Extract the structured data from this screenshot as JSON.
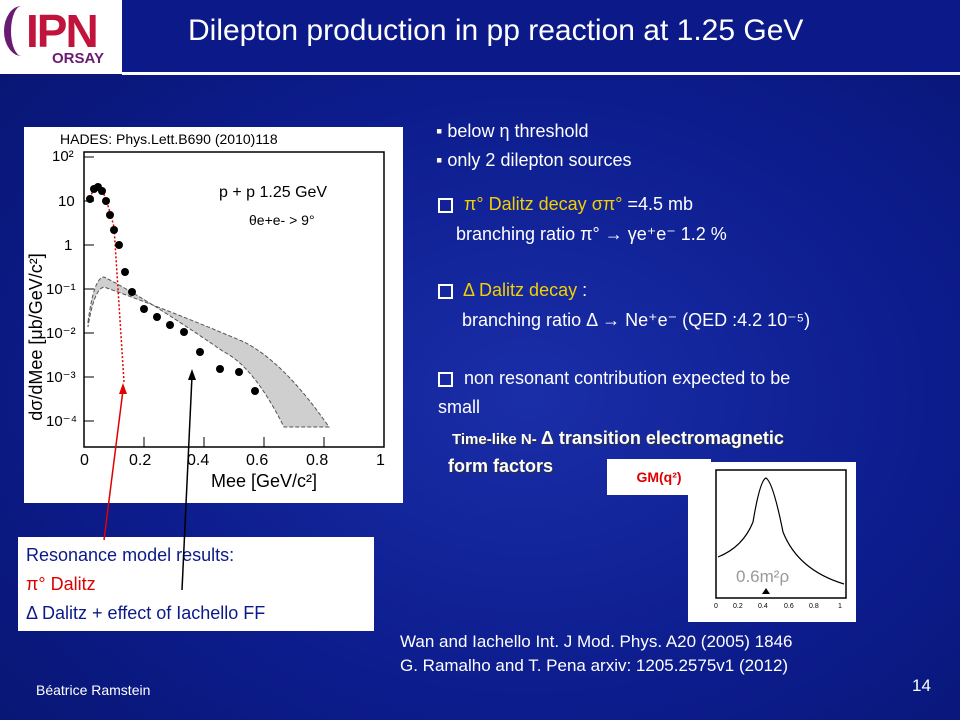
{
  "header": {
    "logo_text": "IPN",
    "logo_sub": "ORSAY",
    "title": "Dilepton production in pp reaction at 1.25 GeV"
  },
  "plot": {
    "caption": "HADES: Phys.Lett.B690 (2010)118",
    "reaction": "p + p  1.25 GeV",
    "angle_cut": "θe+e- > 9°",
    "ylabel": "dσ/dMee  [μb/GeV/c²]",
    "xlabel": "Mee [GeV/c²]",
    "yticks": [
      "10²",
      "10",
      "1",
      "10⁻¹",
      "10⁻²",
      "10⁻³",
      "10⁻⁴"
    ],
    "xticks": [
      "0",
      "0.2",
      "0.4",
      "0.6",
      "0.8",
      "1"
    ]
  },
  "bullets": {
    "b1": "below η threshold",
    "b2": "only 2 dilepton sources"
  },
  "items": {
    "pi0_title": "π° Dalitz decay",
    "pi0_sigma": "σπ°",
    "pi0_value": " =4.5 mb",
    "pi0_br": "branching ratio π° → γe⁺e⁻ 1.2 %",
    "delta_title": "Δ Dalitz decay",
    "delta_colon": " :",
    "delta_br": "branching ratio Δ → Ne⁺e⁻ (QED :4.2 10⁻⁵)",
    "nonres_1": "non resonant contribution expected to be",
    "nonres_2": "small"
  },
  "timelike": {
    "line1_small": "Time-like N- ",
    "line1_big": "Δ transition electromagnetic",
    "line2": "form factors"
  },
  "gm": {
    "label": "GM(q²)",
    "annotation": "0.6m²ρ"
  },
  "resonance": {
    "line1": "Resonance model results:",
    "line2": "π° Dalitz",
    "line3": "Δ Dalitz + effect of Iachello FF"
  },
  "refs": {
    "ref1": "Wan and Iachello Int. J Mod. Phys. A20 (2005) 1846",
    "ref2": "G. Ramalho and T. Pena arxiv: 1205.2575v1 (2012)"
  },
  "footer": {
    "author": "Béatrice Ramstein",
    "page": "14"
  },
  "colors": {
    "background": "#0c1c8c",
    "accent_yellow": "#f4d000",
    "arrow_red": "#e00000",
    "logo_red": "#c0143c"
  }
}
